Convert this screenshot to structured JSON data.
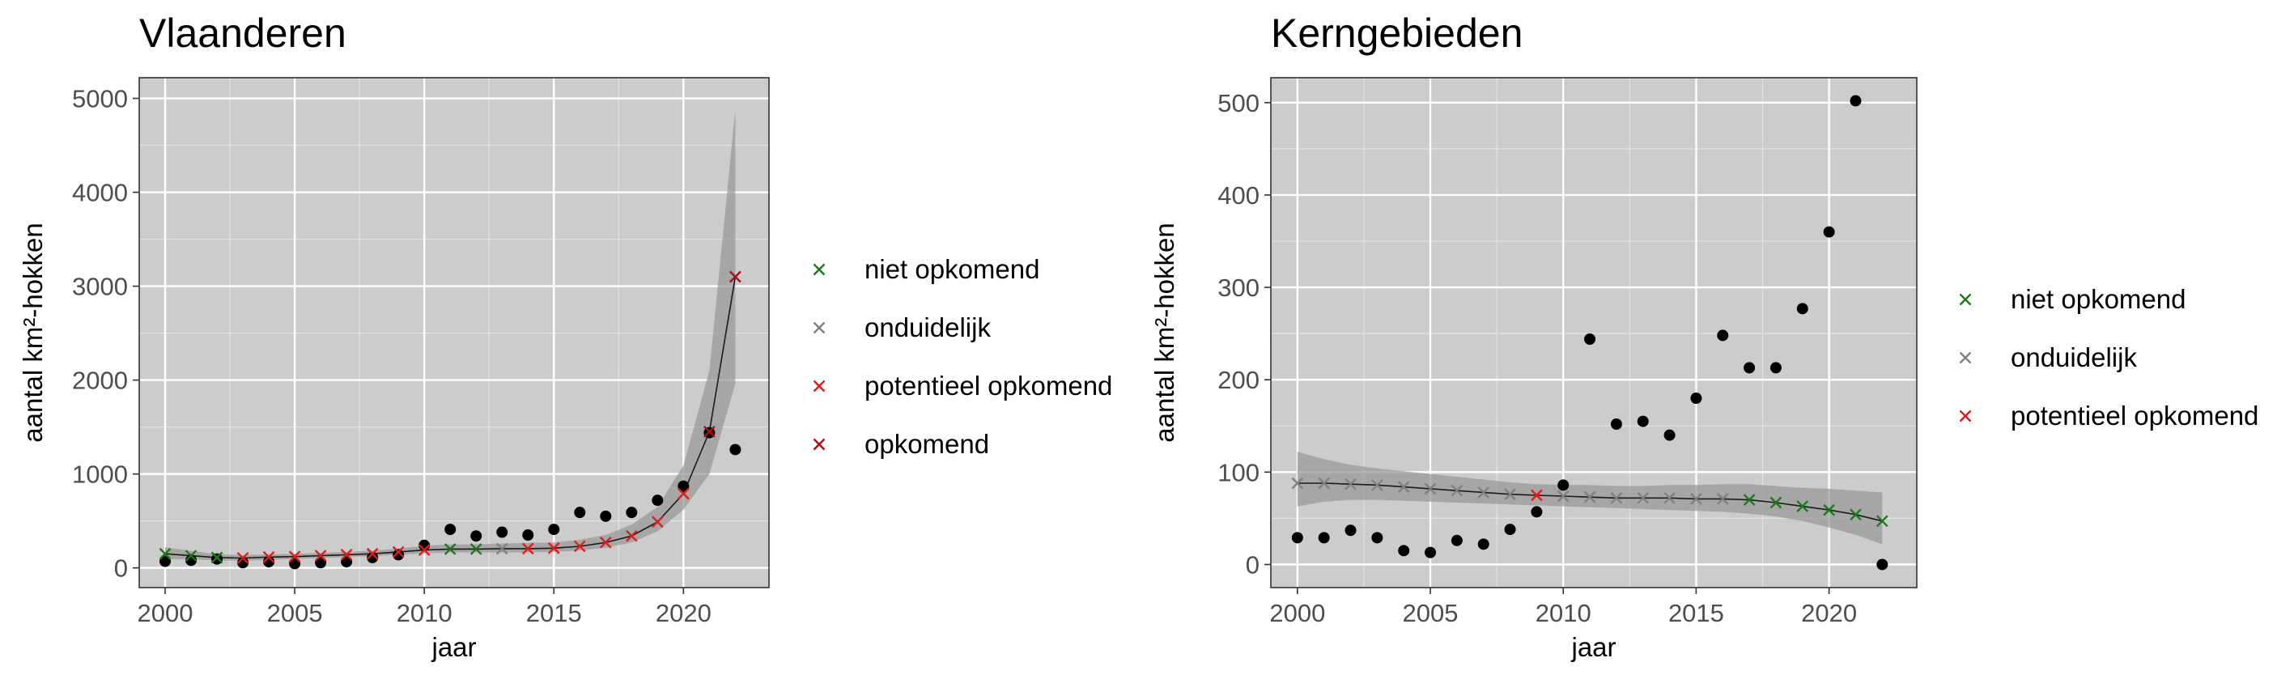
{
  "chart_data": [
    {
      "type": "scatter",
      "title": "Vlaanderen",
      "xlabel": "jaar",
      "ylabel": "aantal km²-hokken",
      "xlim": [
        1999,
        2023.3
      ],
      "ylim": [
        -210,
        5220
      ],
      "xticks": [
        2000,
        2005,
        2010,
        2015,
        2020
      ],
      "yticks": [
        0,
        1000,
        2000,
        3000,
        4000,
        5000
      ],
      "grid": true,
      "legend_position": "right",
      "legend": [
        {
          "label": "niet opkomend",
          "color": "#1a7a1a"
        },
        {
          "label": "onduidelijk",
          "color": "#808080"
        },
        {
          "label": "potentieel opkomend",
          "color": "#e31a1c"
        },
        {
          "label": "opkomend",
          "color": "#a50f15"
        }
      ],
      "observed": {
        "x": [
          2000,
          2001,
          2002,
          2003,
          2004,
          2005,
          2006,
          2007,
          2008,
          2009,
          2010,
          2011,
          2012,
          2013,
          2014,
          2015,
          2016,
          2017,
          2018,
          2019,
          2020,
          2021,
          2022
        ],
        "y": [
          70,
          80,
          95,
          55,
          65,
          45,
          55,
          65,
          110,
          140,
          240,
          410,
          340,
          380,
          350,
          410,
          590,
          550,
          590,
          720,
          870,
          1440,
          1260
        ]
      },
      "fit": {
        "x": [
          2000,
          2001,
          2002,
          2003,
          2004,
          2005,
          2006,
          2007,
          2008,
          2009,
          2010,
          2011,
          2012,
          2013,
          2014,
          2015,
          2016,
          2017,
          2018,
          2019,
          2020,
          2021,
          2022
        ],
        "y": [
          150,
          130,
          110,
          105,
          115,
          120,
          130,
          140,
          150,
          170,
          190,
          200,
          200,
          205,
          205,
          210,
          230,
          270,
          340,
          490,
          790,
          1450,
          3100
        ],
        "lower": [
          95,
          90,
          80,
          75,
          85,
          95,
          105,
          115,
          125,
          140,
          155,
          165,
          165,
          165,
          165,
          170,
          185,
          215,
          270,
          390,
          620,
          1000,
          1960
        ],
        "upper": [
          220,
          180,
          145,
          135,
          145,
          150,
          160,
          170,
          185,
          205,
          235,
          250,
          250,
          260,
          265,
          270,
          300,
          350,
          460,
          650,
          1090,
          2100,
          4880
        ],
        "status": [
          "niet opkomend",
          "niet opkomend",
          "niet opkomend",
          "potentieel opkomend",
          "potentieel opkomend",
          "potentieel opkomend",
          "potentieel opkomend",
          "potentieel opkomend",
          "potentieel opkomend",
          "potentieel opkomend",
          "potentieel opkomend",
          "niet opkomend",
          "niet opkomend",
          "onduidelijk",
          "potentieel opkomend",
          "potentieel opkomend",
          "potentieel opkomend",
          "potentieel opkomend",
          "potentieel opkomend",
          "potentieel opkomend",
          "potentieel opkomend",
          "opkomend",
          "opkomend"
        ]
      }
    },
    {
      "type": "scatter",
      "title": "Kerngebieden",
      "xlabel": "jaar",
      "ylabel": "aantal km²-hokken",
      "xlim": [
        1999,
        2023.3
      ],
      "ylim": [
        -25,
        527
      ],
      "xticks": [
        2000,
        2005,
        2010,
        2015,
        2020
      ],
      "yticks": [
        0,
        100,
        200,
        300,
        400,
        500
      ],
      "grid": true,
      "legend_position": "right",
      "legend": [
        {
          "label": "niet opkomend",
          "color": "#1a7a1a"
        },
        {
          "label": "onduidelijk",
          "color": "#808080"
        },
        {
          "label": "potentieel opkomend",
          "color": "#e31a1c"
        }
      ],
      "observed": {
        "x": [
          2000,
          2001,
          2002,
          2003,
          2004,
          2005,
          2006,
          2007,
          2008,
          2009,
          2010,
          2011,
          2012,
          2013,
          2014,
          2015,
          2016,
          2017,
          2018,
          2019,
          2020,
          2021,
          2022
        ],
        "y": [
          29,
          29,
          37,
          29,
          15,
          13,
          26,
          22,
          38,
          57,
          86,
          244,
          152,
          155,
          140,
          180,
          248,
          213,
          213,
          277,
          360,
          502,
          0
        ]
      },
      "fit": {
        "x": [
          2000,
          2001,
          2002,
          2003,
          2004,
          2005,
          2006,
          2007,
          2008,
          2009,
          2010,
          2011,
          2012,
          2013,
          2014,
          2015,
          2016,
          2017,
          2018,
          2019,
          2020,
          2021,
          2022
        ],
        "y": [
          88,
          88,
          87,
          86,
          84,
          82,
          80,
          78,
          76,
          75,
          74,
          73,
          72,
          72,
          72,
          71,
          71,
          70,
          67,
          63,
          59,
          54,
          47
        ],
        "lower": [
          63,
          68,
          70,
          70,
          69,
          68,
          67,
          66,
          65,
          64,
          63,
          62,
          61,
          60,
          59,
          58,
          57,
          55,
          52,
          47,
          40,
          32,
          22
        ],
        "upper": [
          122,
          114,
          108,
          104,
          101,
          98,
          95,
          92,
          89,
          87,
          86,
          86,
          85,
          85,
          86,
          86,
          87,
          87,
          85,
          83,
          82,
          80,
          78
        ],
        "status": [
          "onduidelijk",
          "onduidelijk",
          "onduidelijk",
          "onduidelijk",
          "onduidelijk",
          "onduidelijk",
          "onduidelijk",
          "onduidelijk",
          "onduidelijk",
          "potentieel opkomend",
          "onduidelijk",
          "onduidelijk",
          "onduidelijk",
          "onduidelijk",
          "onduidelijk",
          "onduidelijk",
          "onduidelijk",
          "niet opkomend",
          "niet opkomend",
          "niet opkomend",
          "niet opkomend",
          "niet opkomend",
          "niet opkomend"
        ]
      }
    }
  ]
}
